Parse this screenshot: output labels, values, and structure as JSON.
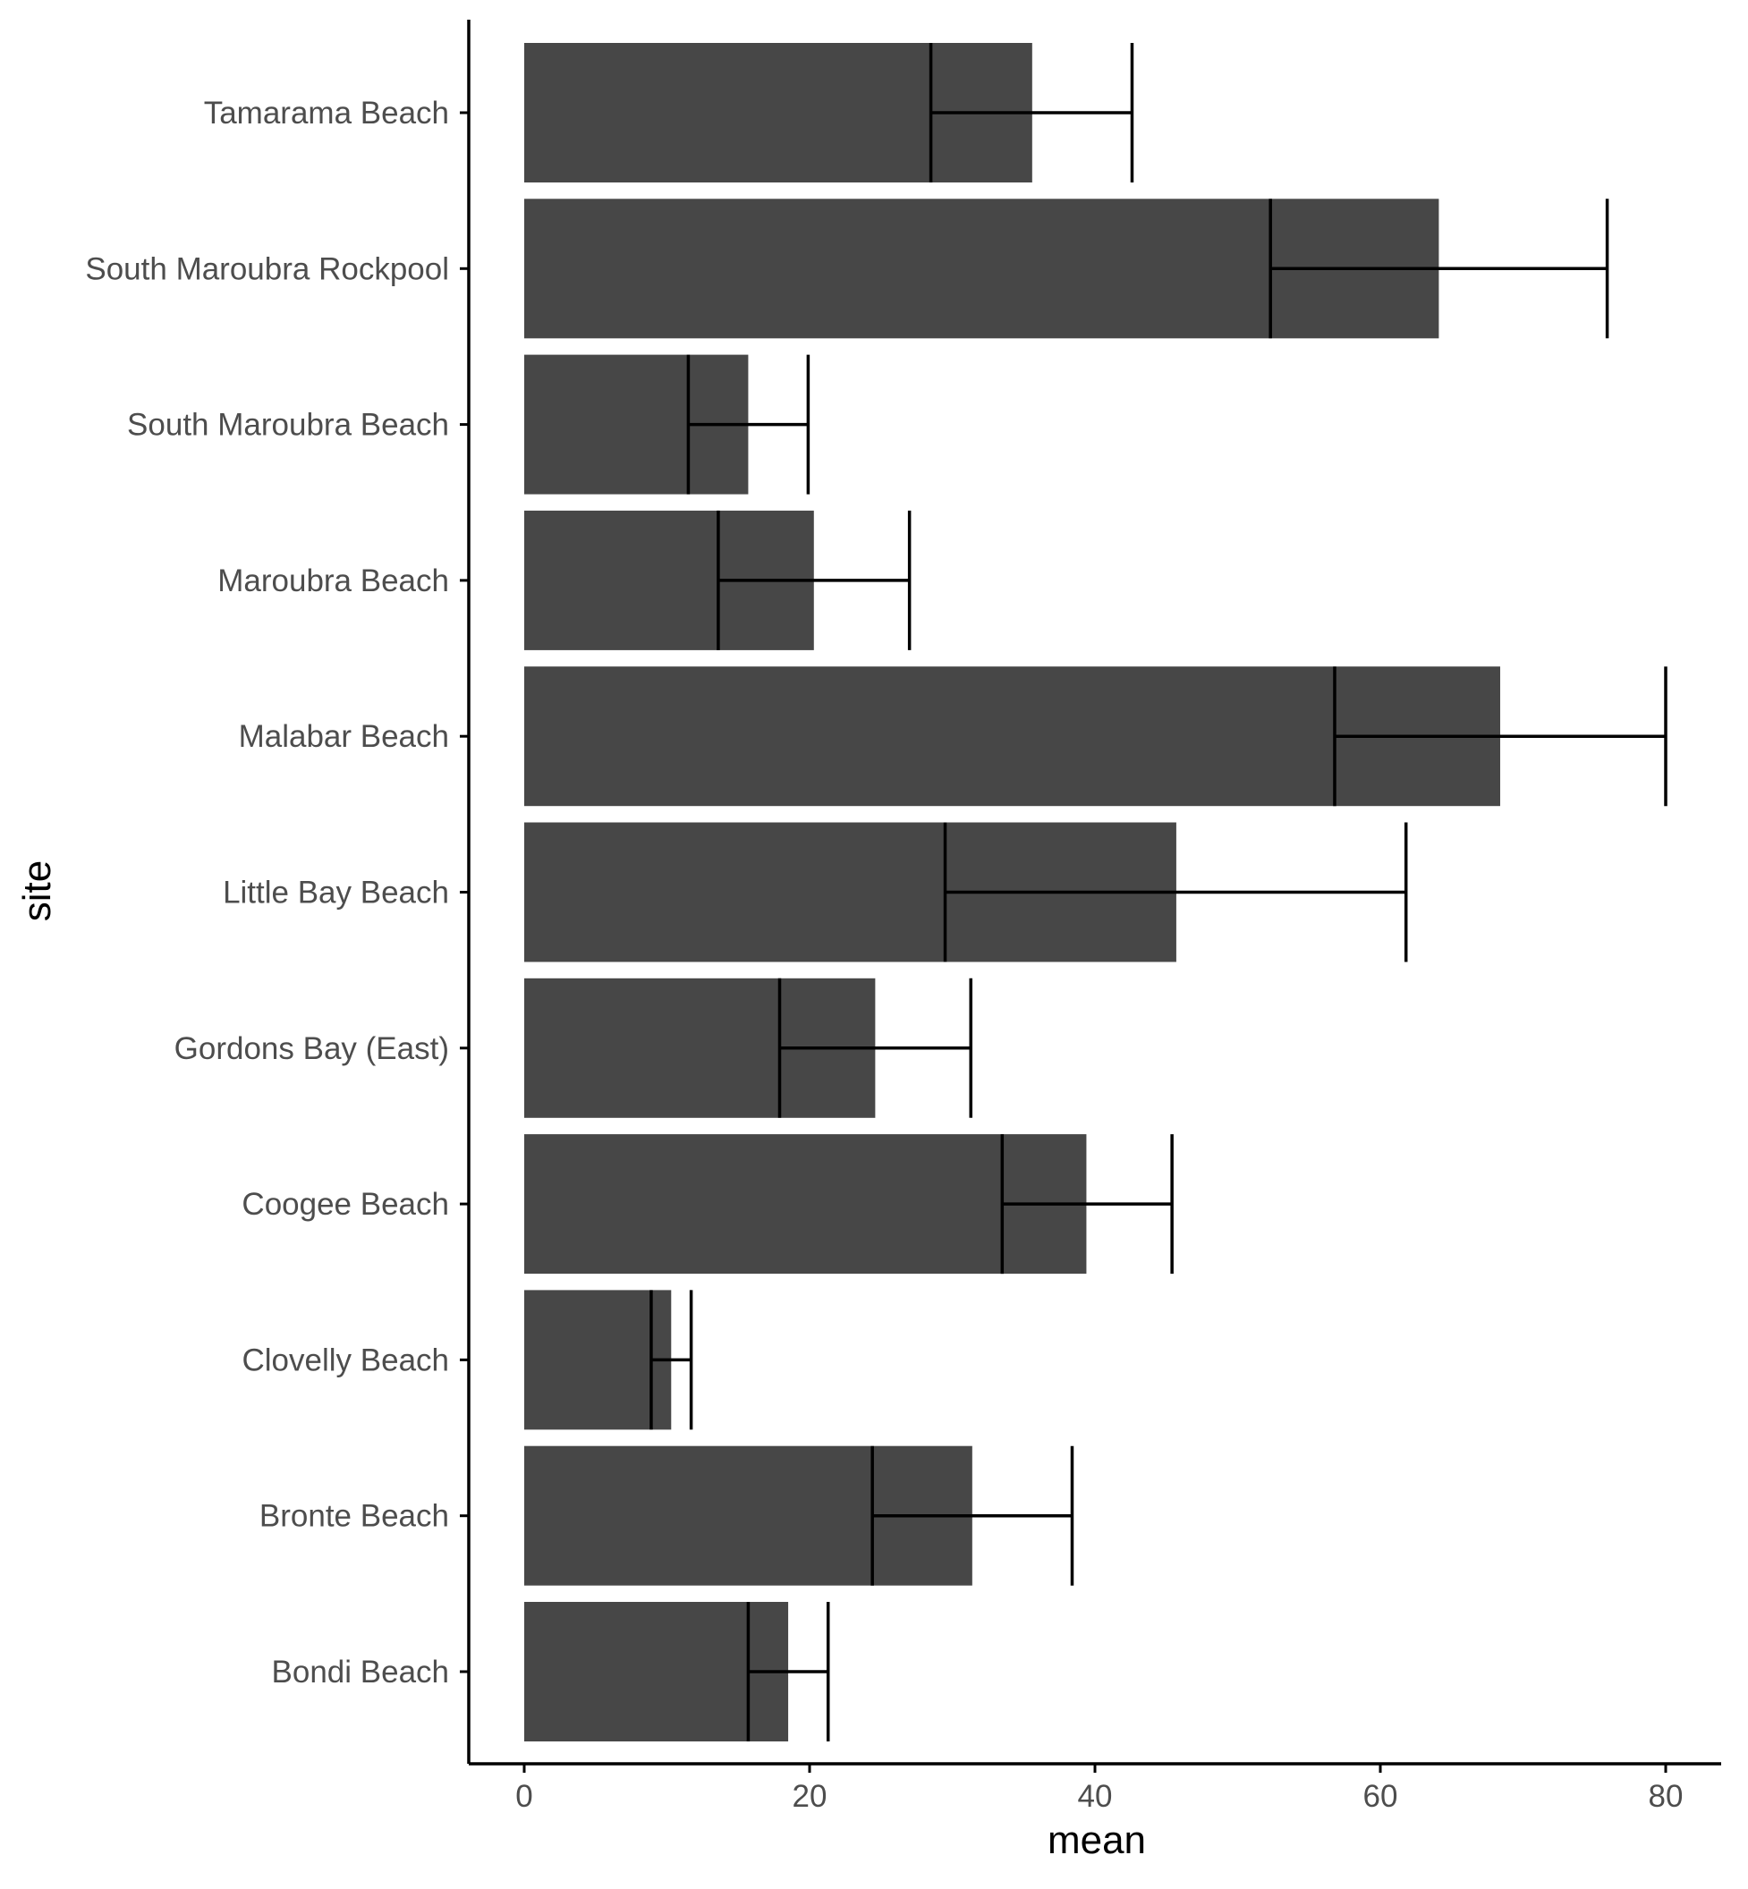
{
  "chart_data": {
    "type": "bar",
    "orientation": "horizontal",
    "title": "",
    "xlabel": "mean",
    "ylabel": "site",
    "xlim": [
      -4,
      84
    ],
    "x_ticks": [
      0,
      20,
      40,
      60,
      80
    ],
    "x_tick_labels": [
      "0",
      "20",
      "40",
      "60",
      "80"
    ],
    "grid": false,
    "legend": "none",
    "categories": [
      "Tamarama Beach",
      "South Maroubra Rockpool",
      "South Maroubra Beach",
      "Maroubra Beach",
      "Malabar Beach",
      "Little Bay Beach",
      "Gordons Bay (East)",
      "Coogee Beach",
      "Clovelly Beach",
      "Bronte Beach",
      "Bondi Beach"
    ],
    "values": [
      35.6,
      64.1,
      15.7,
      20.3,
      68.4,
      45.7,
      24.6,
      39.4,
      10.3,
      31.4,
      18.5
    ],
    "error_low": [
      28.5,
      52.3,
      11.5,
      13.6,
      56.8,
      29.5,
      17.9,
      33.5,
      8.9,
      24.4,
      15.7
    ],
    "error_high": [
      42.6,
      75.9,
      19.9,
      27.0,
      80.0,
      61.8,
      31.3,
      45.4,
      11.7,
      38.4,
      21.3
    ],
    "colors": {
      "bar": "#474747",
      "errorbar": "#000000",
      "axis": "#000000",
      "tick_label": "#4d4d4d",
      "background": "#ffffff"
    }
  }
}
